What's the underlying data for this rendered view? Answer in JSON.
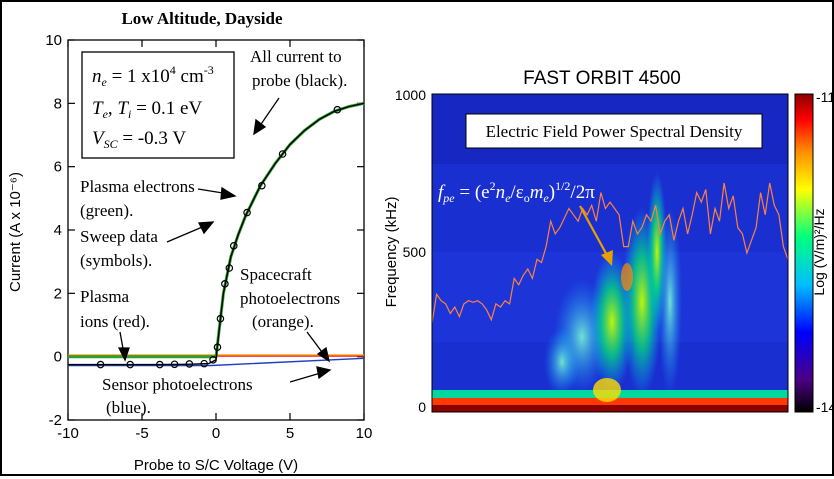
{
  "chart_data": [
    {
      "type": "line",
      "title": "Low Altitude, Dayside",
      "xlabel": "Probe to S/C Voltage (V)",
      "ylabel": "Current (A x 10⁻⁶)",
      "xlim": [
        -10,
        10
      ],
      "ylim": [
        -2,
        10
      ],
      "xticks": [
        "-10",
        "-5",
        "0",
        "5",
        "10"
      ],
      "yticks": [
        "-2",
        "0",
        "2",
        "4",
        "6",
        "8",
        "10"
      ],
      "parameters": [
        {
          "sym": "n",
          "sub": "e",
          "rest": " = 1 x10",
          "sup": "4",
          "unit": " cm",
          "unit_sup": "-3"
        },
        {
          "sym": "T",
          "sub": "e",
          "sym2": "T",
          "sub2": "i",
          "rest": " = 0.1 eV"
        },
        {
          "sym": "V",
          "sub": "SC",
          "rest": " = -0.3 V"
        }
      ],
      "series": [
        {
          "name": "All current to probe (black).",
          "color": "#000000",
          "x": [
            -10,
            -8,
            -6,
            -4,
            -2,
            -0.5,
            0,
            0.2,
            0.5,
            1,
            1.5,
            2,
            3,
            4,
            5,
            6,
            7,
            8,
            9,
            10
          ],
          "y": [
            -0.25,
            -0.25,
            -0.25,
            -0.25,
            -0.24,
            -0.22,
            -0.1,
            0.8,
            2.0,
            3.15,
            3.85,
            4.45,
            5.4,
            6.1,
            6.7,
            7.15,
            7.5,
            7.75,
            7.9,
            8.0
          ]
        },
        {
          "name": "Plasma electrons (green).",
          "color": "#2ca02c",
          "x": [
            -10,
            -5,
            0,
            0.2,
            0.5,
            1,
            1.5,
            2,
            3,
            4,
            5,
            6,
            7,
            8,
            9,
            10
          ],
          "y": [
            0,
            0,
            0,
            0.8,
            2.0,
            3.15,
            3.85,
            4.45,
            5.4,
            6.1,
            6.7,
            7.15,
            7.5,
            7.75,
            7.9,
            8.0
          ]
        },
        {
          "name": "Plasma ions (red).",
          "color": "#e31a1c",
          "x": [
            -10,
            0,
            10
          ],
          "y": [
            0.02,
            0.02,
            0.02
          ]
        },
        {
          "name": "Spacecraft photoelectrons (orange).",
          "color": "#ff8c00",
          "x": [
            -10,
            0,
            10
          ],
          "y": [
            0.05,
            0.05,
            0.05
          ]
        },
        {
          "name": "Sensor photoelectrons (blue).",
          "color": "#1f3fbf",
          "x": [
            -10,
            -0.3,
            10
          ],
          "y": [
            -0.28,
            -0.28,
            -0.05
          ]
        }
      ],
      "sweep_data": {
        "name": "Sweep data (symbols).",
        "x": [
          -7.8,
          -5.8,
          -3.8,
          -2.8,
          -1.8,
          -0.8,
          -0.2,
          0.1,
          0.3,
          0.6,
          0.9,
          1.2,
          2.1,
          3.1,
          4.5,
          8.2
        ],
        "y": [
          -0.25,
          -0.25,
          -0.25,
          -0.24,
          -0.23,
          -0.22,
          -0.1,
          0.3,
          1.2,
          2.3,
          2.8,
          3.5,
          4.55,
          5.4,
          6.4,
          7.8
        ]
      },
      "annotations": [
        {
          "lines": [
            "All current to",
            "probe (black)."
          ]
        },
        {
          "lines": [
            "Plasma electrons",
            "(green)."
          ]
        },
        {
          "lines": [
            "Sweep data",
            "(symbols)."
          ]
        },
        {
          "lines": [
            "Spacecraft",
            "photoelectrons",
            "(orange)."
          ]
        },
        {
          "lines": [
            "Plasma",
            "ions (red)."
          ]
        },
        {
          "lines": [
            "Sensor photoelectrons",
            "(blue)."
          ]
        }
      ]
    },
    {
      "type": "heatmap",
      "title": "FAST ORBIT 4500",
      "ylabel": "Frequency (kHz)",
      "ylim": [
        0,
        1000
      ],
      "yticks": [
        "0",
        "500",
        "1000"
      ],
      "colorbar": {
        "label": "Log (V/m)²/Hz",
        "min": "-14",
        "max": "-11",
        "colors": [
          "#000000",
          "#4b0082",
          "#0000ff",
          "#00bfff",
          "#00ff7f",
          "#ffff00",
          "#ff8c00",
          "#ff0000",
          "#8b0000"
        ]
      },
      "inner_title": "Electric Field Power Spectral Density",
      "fpe_label": {
        "f": "f",
        "f_sub": "pe",
        "eq": " = (e",
        "e_sup": "2",
        "n": "n",
        "n_sub": "e",
        "slash": "/ε",
        "eps_sub": "o",
        "m": "m",
        "m_sub": "e",
        "close": ")",
        "pow": "1/2",
        "tail": "/2π"
      },
      "fpe_trace": [
        280,
        370,
        350,
        340,
        310,
        330,
        300,
        340,
        350,
        345,
        350,
        340,
        320,
        290,
        340,
        330,
        350,
        340,
        420,
        400,
        430,
        450,
        420,
        480,
        470,
        520,
        600,
        560,
        580,
        610,
        640,
        620,
        600,
        640,
        620,
        650,
        600,
        690,
        640,
        660,
        640,
        620,
        520,
        520,
        600,
        560,
        580,
        620,
        600,
        650,
        560,
        600,
        620,
        540,
        600,
        640,
        560,
        620,
        690,
        660,
        700,
        560,
        640,
        600,
        720,
        640,
        680,
        580,
        560,
        500,
        540,
        580,
        690,
        620,
        720,
        650,
        620,
        520,
        480
      ]
    }
  ]
}
